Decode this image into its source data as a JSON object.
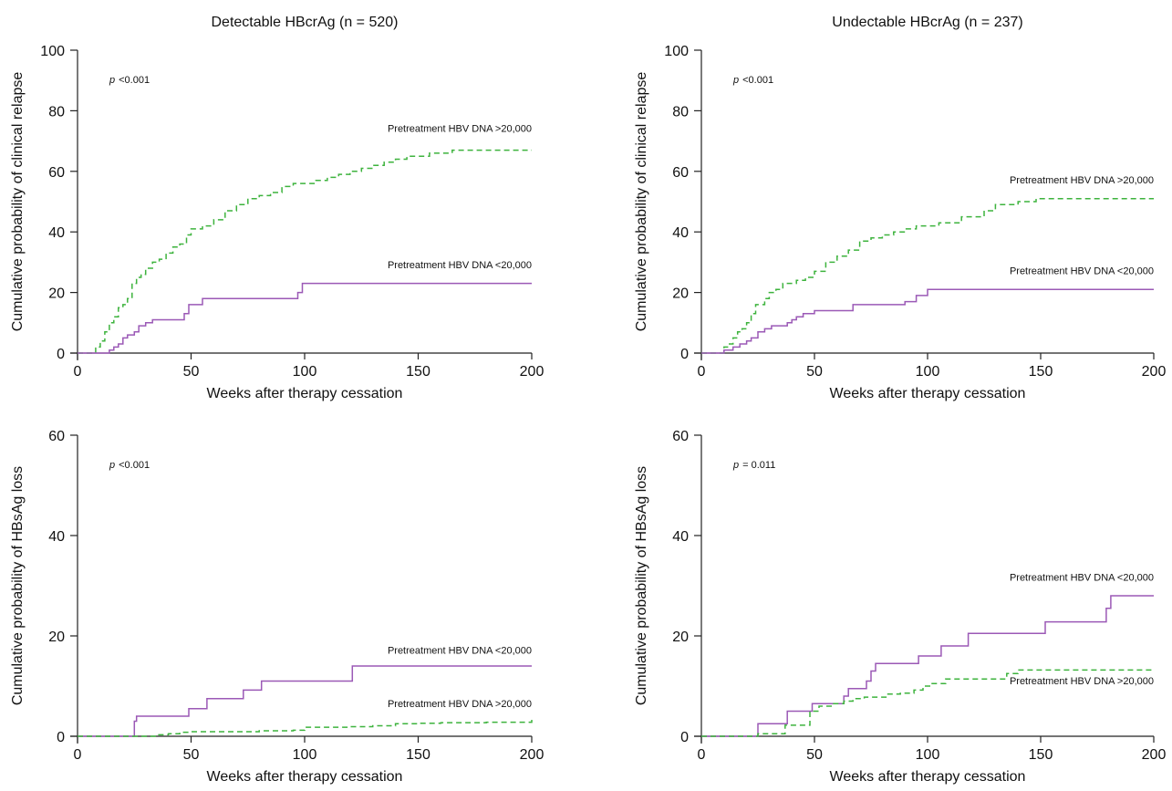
{
  "chart_data": [
    {
      "type": "line",
      "panel": "top-left",
      "title": "Detectable HBcrAg (n = 520)",
      "xlabel": "Weeks after therapy cessation",
      "ylabel": "Cumulative probability of clinical relapse",
      "xlim": [
        0,
        200
      ],
      "ylim": [
        0,
        100
      ],
      "xticks": [
        "0",
        "50",
        "100",
        "150",
        "200"
      ],
      "yticks": [
        "0",
        "20",
        "40",
        "60",
        "80",
        "100"
      ],
      "p_prefix": "p",
      "p_value": "<0.001",
      "grid": false,
      "series": [
        {
          "name": "Pretreatment HBV DNA >20,000",
          "style": "dashed",
          "color": "#3db33d",
          "points": [
            [
              0,
              0
            ],
            [
              5,
              0
            ],
            [
              8,
              2
            ],
            [
              10,
              4
            ],
            [
              12,
              7
            ],
            [
              14,
              10
            ],
            [
              16,
              12
            ],
            [
              18,
              15
            ],
            [
              20,
              16
            ],
            [
              22,
              18
            ],
            [
              24,
              23
            ],
            [
              26,
              25
            ],
            [
              28,
              26
            ],
            [
              30,
              28
            ],
            [
              33,
              30
            ],
            [
              36,
              31
            ],
            [
              39,
              33
            ],
            [
              42,
              35
            ],
            [
              45,
              36
            ],
            [
              48,
              39
            ],
            [
              50,
              41
            ],
            [
              55,
              42
            ],
            [
              60,
              44
            ],
            [
              65,
              47
            ],
            [
              70,
              49
            ],
            [
              75,
              51
            ],
            [
              80,
              52
            ],
            [
              85,
              53
            ],
            [
              90,
              55
            ],
            [
              95,
              56
            ],
            [
              100,
              56
            ],
            [
              105,
              57
            ],
            [
              110,
              58
            ],
            [
              115,
              59
            ],
            [
              120,
              60
            ],
            [
              125,
              61
            ],
            [
              130,
              62
            ],
            [
              135,
              63
            ],
            [
              140,
              64
            ],
            [
              145,
              65
            ],
            [
              150,
              65
            ],
            [
              155,
              66
            ],
            [
              160,
              66
            ],
            [
              165,
              67
            ],
            [
              170,
              67
            ],
            [
              180,
              67
            ],
            [
              200,
              67
            ]
          ]
        },
        {
          "name": "Pretreatment HBV DNA <20,000",
          "style": "solid",
          "color": "#9b59b6",
          "points": [
            [
              0,
              0
            ],
            [
              12,
              0
            ],
            [
              14,
              1
            ],
            [
              16,
              2
            ],
            [
              18,
              3
            ],
            [
              20,
              5
            ],
            [
              22,
              6
            ],
            [
              25,
              7
            ],
            [
              27,
              9
            ],
            [
              30,
              10
            ],
            [
              33,
              11
            ],
            [
              45,
              11
            ],
            [
              47,
              13
            ],
            [
              49,
              16
            ],
            [
              53,
              16
            ],
            [
              55,
              18
            ],
            [
              95,
              18
            ],
            [
              97,
              20
            ],
            [
              99,
              23
            ],
            [
              200,
              23
            ]
          ]
        }
      ],
      "annotations": [
        {
          "text": "Pretreatment HBV DNA >20,000",
          "x": 200,
          "y": 73
        },
        {
          "text": "Pretreatment HBV DNA <20,000",
          "x": 200,
          "y": 28
        }
      ]
    },
    {
      "type": "line",
      "panel": "top-right",
      "title": "Undectable HBcrAg (n = 237)",
      "xlabel": "Weeks after therapy cessation",
      "ylabel": "Cumulative probability of clinical relapse",
      "xlim": [
        0,
        200
      ],
      "ylim": [
        0,
        100
      ],
      "xticks": [
        "0",
        "50",
        "100",
        "150",
        "200"
      ],
      "yticks": [
        "0",
        "20",
        "40",
        "60",
        "80",
        "100"
      ],
      "p_prefix": "p",
      "p_value": "<0.001",
      "grid": false,
      "series": [
        {
          "name": "Pretreatment HBV DNA >20,000",
          "style": "dashed",
          "color": "#3db33d",
          "points": [
            [
              0,
              0
            ],
            [
              8,
              0
            ],
            [
              10,
              2
            ],
            [
              12,
              3
            ],
            [
              14,
              5
            ],
            [
              16,
              7
            ],
            [
              18,
              8
            ],
            [
              20,
              10
            ],
            [
              22,
              13
            ],
            [
              24,
              16
            ],
            [
              28,
              18
            ],
            [
              30,
              20
            ],
            [
              33,
              21
            ],
            [
              36,
              23
            ],
            [
              42,
              24
            ],
            [
              46,
              25
            ],
            [
              50,
              27
            ],
            [
              55,
              30
            ],
            [
              60,
              32
            ],
            [
              65,
              34
            ],
            [
              70,
              37
            ],
            [
              75,
              38
            ],
            [
              80,
              39
            ],
            [
              85,
              40
            ],
            [
              90,
              41
            ],
            [
              95,
              42
            ],
            [
              100,
              42
            ],
            [
              105,
              43
            ],
            [
              115,
              45
            ],
            [
              125,
              47
            ],
            [
              130,
              49
            ],
            [
              140,
              50
            ],
            [
              148,
              51
            ],
            [
              200,
              51
            ]
          ]
        },
        {
          "name": "Pretreatment HBV DNA <20,000",
          "style": "solid",
          "color": "#9b59b6",
          "points": [
            [
              0,
              0
            ],
            [
              8,
              0
            ],
            [
              10,
              1
            ],
            [
              14,
              2
            ],
            [
              17,
              3
            ],
            [
              20,
              4
            ],
            [
              22,
              5
            ],
            [
              25,
              7
            ],
            [
              28,
              8
            ],
            [
              31,
              9
            ],
            [
              38,
              10
            ],
            [
              40,
              11
            ],
            [
              42,
              12
            ],
            [
              45,
              13
            ],
            [
              50,
              14
            ],
            [
              65,
              14
            ],
            [
              67,
              16
            ],
            [
              88,
              16
            ],
            [
              90,
              17
            ],
            [
              95,
              19
            ],
            [
              100,
              21
            ],
            [
              200,
              21
            ]
          ]
        }
      ],
      "annotations": [
        {
          "text": "Pretreatment HBV DNA >20,000",
          "x": 200,
          "y": 56
        },
        {
          "text": "Pretreatment HBV DNA <20,000",
          "x": 200,
          "y": 26
        }
      ]
    },
    {
      "type": "line",
      "panel": "bottom-left",
      "title": "",
      "xlabel": "Weeks after therapy cessation",
      "ylabel": "Cumulative probability of HBsAg loss",
      "xlim": [
        0,
        200
      ],
      "ylim": [
        0,
        60
      ],
      "xticks": [
        "0",
        "50",
        "100",
        "150",
        "200"
      ],
      "yticks": [
        "0",
        "20",
        "40",
        "60"
      ],
      "p_prefix": "p",
      "p_value": "<0.001",
      "grid": false,
      "series": [
        {
          "name": "Pretreatment HBV DNA <20,000",
          "style": "solid",
          "color": "#9b59b6",
          "points": [
            [
              0,
              0
            ],
            [
              24,
              0
            ],
            [
              25,
              3
            ],
            [
              26,
              4
            ],
            [
              48,
              4
            ],
            [
              49,
              5.5
            ],
            [
              56,
              5.5
            ],
            [
              57,
              7.5
            ],
            [
              72,
              7.5
            ],
            [
              73,
              9.2
            ],
            [
              80,
              9.2
            ],
            [
              81,
              11
            ],
            [
              120,
              11
            ],
            [
              121,
              14
            ],
            [
              200,
              14
            ]
          ]
        },
        {
          "name": "Pretreatment HBV DNA >20,000",
          "style": "dashed",
          "color": "#3db33d",
          "points": [
            [
              0,
              0
            ],
            [
              28,
              0
            ],
            [
              35,
              0.3
            ],
            [
              40,
              0.5
            ],
            [
              45,
              0.8
            ],
            [
              50,
              0.9
            ],
            [
              60,
              0.9
            ],
            [
              70,
              0.9
            ],
            [
              80,
              1.1
            ],
            [
              95,
              1.2
            ],
            [
              100,
              1.8
            ],
            [
              120,
              1.9
            ],
            [
              130,
              2.1
            ],
            [
              140,
              2.5
            ],
            [
              150,
              2.6
            ],
            [
              160,
              2.7
            ],
            [
              180,
              2.8
            ],
            [
              197,
              2.8
            ],
            [
              200,
              3.4
            ]
          ]
        }
      ],
      "annotations": [
        {
          "text": "Pretreatment HBV DNA <20,000",
          "x": 200,
          "y": 16.5
        },
        {
          "text": "Pretreatment HBV DNA >20,000",
          "x": 200,
          "y": 5.8
        }
      ]
    },
    {
      "type": "line",
      "panel": "bottom-right",
      "title": "",
      "xlabel": "Weeks after therapy cessation",
      "ylabel": "Cumulative probability of HBsAg loss",
      "xlim": [
        0,
        200
      ],
      "ylim": [
        0,
        60
      ],
      "xticks": [
        "0",
        "50",
        "100",
        "150",
        "200"
      ],
      "yticks": [
        "0",
        "20",
        "40",
        "60"
      ],
      "p_prefix": "p",
      "p_value": "= 0.011",
      "grid": false,
      "series": [
        {
          "name": "Pretreatment HBV DNA <20,000",
          "style": "solid",
          "color": "#9b59b6",
          "points": [
            [
              0,
              0
            ],
            [
              24,
              0
            ],
            [
              25,
              2.5
            ],
            [
              37,
              2.5
            ],
            [
              38,
              5
            ],
            [
              48,
              5
            ],
            [
              49,
              6.5
            ],
            [
              61,
              6.5
            ],
            [
              63,
              8
            ],
            [
              65,
              9.5
            ],
            [
              71,
              9.5
            ],
            [
              73,
              11
            ],
            [
              75,
              13
            ],
            [
              77,
              14.5
            ],
            [
              95,
              14.5
            ],
            [
              96,
              16
            ],
            [
              105,
              16
            ],
            [
              106,
              18
            ],
            [
              117,
              18
            ],
            [
              118,
              20.5
            ],
            [
              151,
              20.5
            ],
            [
              152,
              22.8
            ],
            [
              178,
              22.8
            ],
            [
              179,
              25.5
            ],
            [
              181,
              28
            ],
            [
              200,
              28
            ]
          ]
        },
        {
          "name": "Pretreatment HBV DNA >20,000",
          "style": "dashed",
          "color": "#3db33d",
          "points": [
            [
              0,
              0
            ],
            [
              24,
              0
            ],
            [
              25,
              0.5
            ],
            [
              35,
              0.5
            ],
            [
              37,
              2.2
            ],
            [
              47,
              2.2
            ],
            [
              48,
              5
            ],
            [
              52,
              6
            ],
            [
              58,
              6.5
            ],
            [
              63,
              7
            ],
            [
              67,
              7.5
            ],
            [
              72,
              7.8
            ],
            [
              78,
              7.8
            ],
            [
              82,
              8.4
            ],
            [
              88,
              8.6
            ],
            [
              94,
              9.2
            ],
            [
              98,
              10
            ],
            [
              102,
              10.5
            ],
            [
              108,
              11.4
            ],
            [
              130,
              11.4
            ],
            [
              135,
              12.5
            ],
            [
              140,
              13.2
            ],
            [
              200,
              13.2
            ]
          ]
        }
      ],
      "annotations": [
        {
          "text": "Pretreatment HBV DNA <20,000",
          "x": 200,
          "y": 31
        },
        {
          "text": "Pretreatment HBV DNA >20,000",
          "x": 200,
          "y": 10.4
        }
      ]
    }
  ]
}
